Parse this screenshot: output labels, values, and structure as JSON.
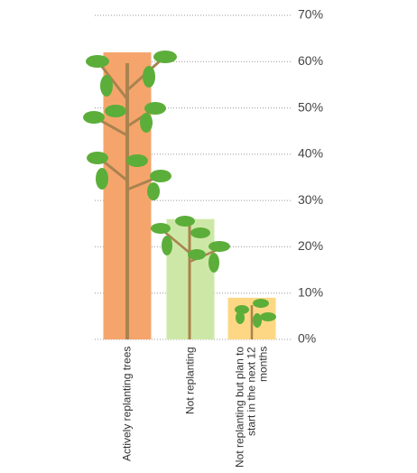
{
  "chart_data": {
    "type": "bar",
    "categories": [
      "Actively replanting trees",
      "Not replanting",
      "Not replanting but plan to start in the next 12 months"
    ],
    "values": [
      62,
      26,
      9
    ],
    "colors": [
      "#f5a56b",
      "#cde8a6",
      "#fdd784"
    ],
    "ylim": [
      0,
      70
    ],
    "yticks": [
      {
        "value": 0,
        "label": "0%"
      },
      {
        "value": 10,
        "label": "10%"
      },
      {
        "value": 20,
        "label": "20%"
      },
      {
        "value": 30,
        "label": "30%"
      },
      {
        "value": 40,
        "label": "40%"
      },
      {
        "value": 50,
        "label": "50%"
      },
      {
        "value": 60,
        "label": "60%"
      },
      {
        "value": 70,
        "label": "70%"
      }
    ],
    "grid": true
  }
}
